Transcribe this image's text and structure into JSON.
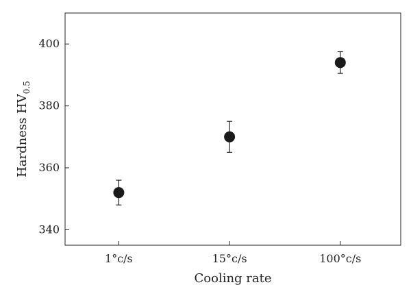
{
  "chart_data": {
    "type": "scatter",
    "title": "",
    "xlabel": "Cooling rate",
    "ylabel_main": "Hardness HV",
    "ylabel_sub": "0.5",
    "categories": [
      "1°c/s",
      "15°c/s",
      "100°c/s"
    ],
    "values": [
      352,
      370,
      394
    ],
    "errors_low": [
      4,
      5,
      3.5
    ],
    "errors_high": [
      4,
      5,
      3.5
    ],
    "ylim": [
      335,
      410
    ],
    "yticks": [
      340,
      360,
      380,
      400
    ],
    "grid": false,
    "legend": "none",
    "marker_color": "#1a1a1a",
    "axis_color": "#222222"
  }
}
